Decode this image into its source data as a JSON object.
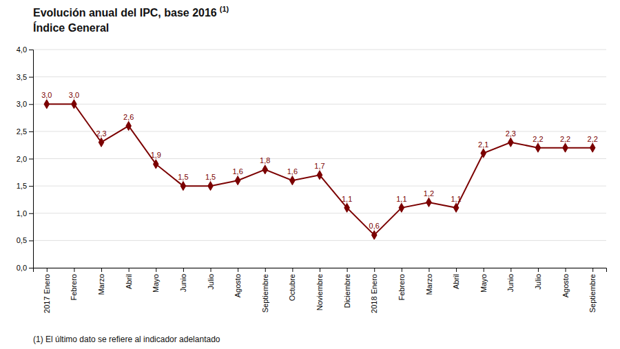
{
  "chart_data": {
    "type": "line",
    "title": "Evolución anual del IPC, base 2016",
    "subtitle": "Índice General",
    "annotations": [
      "(1)",
      "(1) El último dato se refiere al indicador adelantado"
    ],
    "categories": [
      "2017 Enero",
      "Febrero",
      "Marzo",
      "Abril",
      "Mayo",
      "Junio",
      "Julio",
      "Agosto",
      "Septiembre",
      "Octubre",
      "Noviembre",
      "Diciembre",
      "2018 Enero",
      "Febrero",
      "Marzo",
      "Abril",
      "Mayo",
      "Junio",
      "Julio",
      "Agosto",
      "Septiembre"
    ],
    "values": [
      3.0,
      3.0,
      2.3,
      2.6,
      1.9,
      1.5,
      1.5,
      1.6,
      1.8,
      1.6,
      1.7,
      1.1,
      0.6,
      1.1,
      1.2,
      1.1,
      2.1,
      2.3,
      2.2,
      2.2,
      2.2
    ],
    "value_labels": [
      "3,0",
      "3,0",
      "2,3",
      "2,6",
      "1,9",
      "1,5",
      "1,5",
      "1,6",
      "1,8",
      "1,6",
      "1,7",
      "1,1",
      "0,6",
      "1,1",
      "1,2",
      "1,1",
      "2,1",
      "2,3",
      "2,2",
      "2,2",
      "2,2"
    ],
    "data_labels": true,
    "color": "#7B0000",
    "marker": "diamond",
    "ylim": [
      0.0,
      4.0
    ],
    "yticks": [
      {
        "value": 0.0,
        "label": "0,0"
      },
      {
        "value": 0.5,
        "label": "0,5"
      },
      {
        "value": 1.0,
        "label": "1,0"
      },
      {
        "value": 1.5,
        "label": "1,5"
      },
      {
        "value": 2.0,
        "label": "2,0"
      },
      {
        "value": 2.5,
        "label": "2,5"
      },
      {
        "value": 3.0,
        "label": "3,0"
      },
      {
        "value": 3.5,
        "label": "3,5"
      },
      {
        "value": 4.0,
        "label": "4,0"
      }
    ],
    "grid": true
  }
}
